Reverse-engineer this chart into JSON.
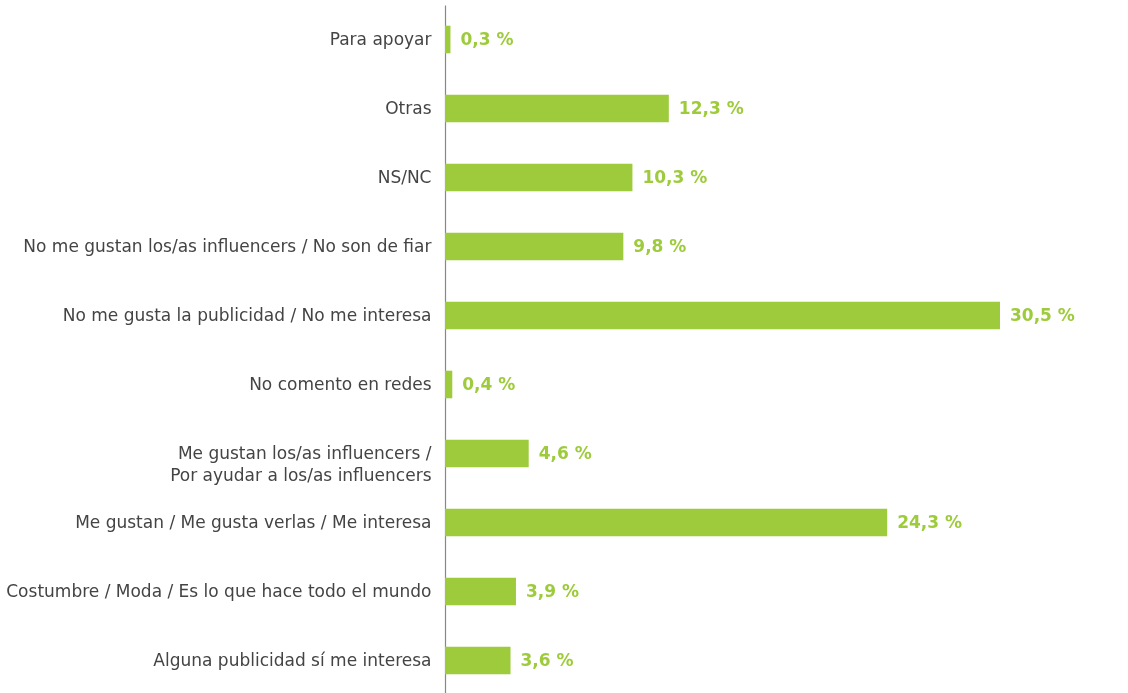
{
  "chart_data": {
    "type": "bar",
    "orientation": "horizontal",
    "categories": [
      "Para apoyar",
      "Otras",
      "NS/NC",
      "No me gustan los/as influencers / No son de fiar",
      "No me gusta la publicidad / No me interesa",
      "No comento en redes",
      "Me gustan los/as influencers /\nPor ayudar a los/as influencers",
      "Me gustan / Me gusta verlas / Me interesa",
      "Costumbre / Moda / Es lo que hace todo el mundo",
      "Alguna publicidad sí me interesa"
    ],
    "values": [
      0.3,
      12.3,
      10.3,
      9.8,
      30.5,
      0.4,
      4.6,
      24.3,
      3.9,
      3.6
    ],
    "value_labels": [
      "0,3 %",
      "12,3 %",
      "10,3 %",
      "9,8 %",
      "30,5 %",
      "0,4 %",
      "4,6 %",
      "24,3 %",
      "3,9 %",
      "3,6 %"
    ],
    "color": "#9dcb3b",
    "tick_labels": "y"
  }
}
